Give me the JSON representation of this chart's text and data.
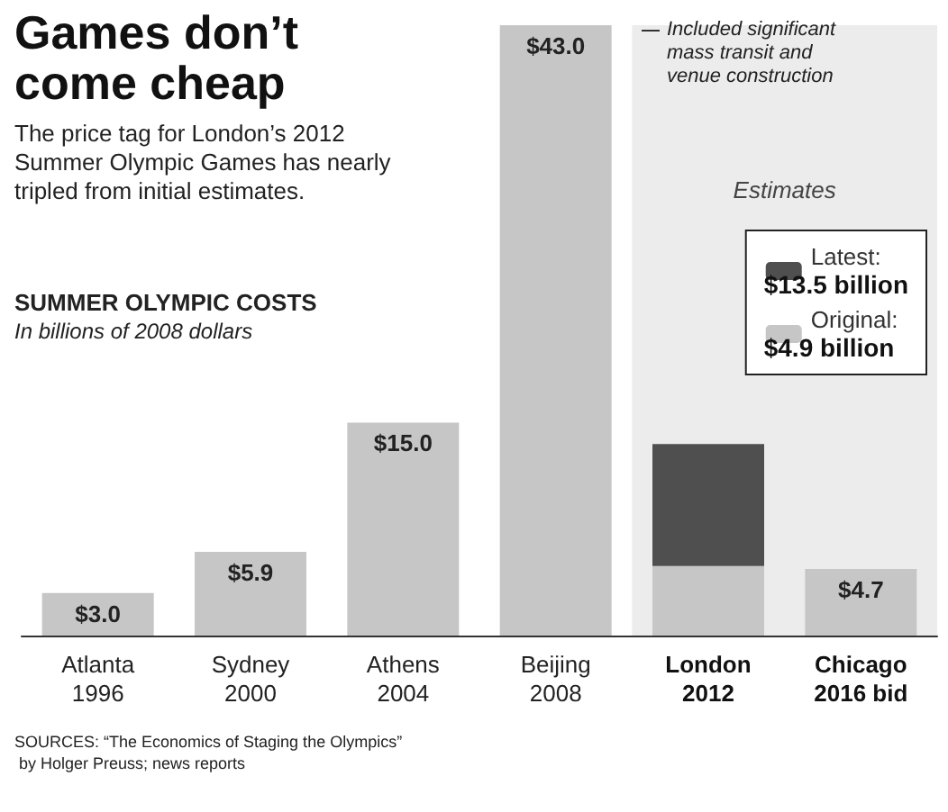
{
  "chart_data": {
    "type": "bar",
    "title": "Games don’t come cheap",
    "subtitle": "The price tag for London’s 2012 Summer Olympic Games has nearly tripled from initial estimates.",
    "categories": [
      "Atlanta\n1996",
      "Sydney\n2000",
      "Athens\n2004",
      "Beijing\n2008",
      "London\n2012",
      "Chicago\n2016 bid"
    ],
    "stacked": true,
    "series": [
      {
        "name": "Original:\n$4.9 billion",
        "color": "#c6c6c6",
        "values": [
          3.0,
          5.9,
          15.0,
          43.0,
          4.9,
          4.7
        ],
        "value_labels": [
          "$3.0",
          "$5.9",
          "$15.0",
          "$43.0",
          null,
          "$4.7"
        ]
      },
      {
        "name": "Latest:\n$13.5 billion",
        "color": "#4f4f4f",
        "values": [
          null,
          null,
          null,
          null,
          8.6,
          null
        ]
      }
    ],
    "bands": [
      {
        "axis": "x",
        "from": "London\n2012",
        "to": "Chicago\n2016 bid",
        "label": "Estimates",
        "color": "#ececec"
      }
    ],
    "annotations": [
      "SUMMER OLYMPIC COSTS",
      "In billions of 2008 dollars",
      "Included significant mass transit and venue construction",
      "SOURCES: “The Economics of Staging the Olympics” by Holger Preuss; news reports"
    ],
    "legend": "top right"
  }
}
